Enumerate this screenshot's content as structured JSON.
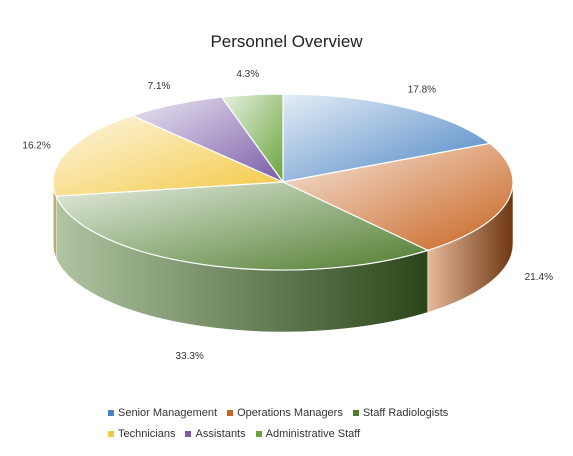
{
  "chart_data": {
    "type": "pie",
    "title": "Personnel Overview",
    "slices": [
      {
        "name": "Senior Management",
        "value": 17.8,
        "label": "17.8%",
        "color": "#4a84c4"
      },
      {
        "name": "Operations Managers",
        "value": 21.4,
        "label": "21.4%",
        "color": "#c8631f"
      },
      {
        "name": "Staff Radiologists",
        "value": 33.3,
        "label": "33.3%",
        "color": "#4f7d2f"
      },
      {
        "name": "Technicians",
        "value": 16.2,
        "label": "16.2%",
        "color": "#f4c842"
      },
      {
        "name": "Assistants",
        "value": 7.1,
        "label": "7.1%",
        "color": "#7a5ca8"
      },
      {
        "name": "Administrative Staff",
        "value": 4.3,
        "label": "4.3%",
        "color": "#6aa43c"
      }
    ],
    "legend_placement": "bottom",
    "style": "3d"
  }
}
